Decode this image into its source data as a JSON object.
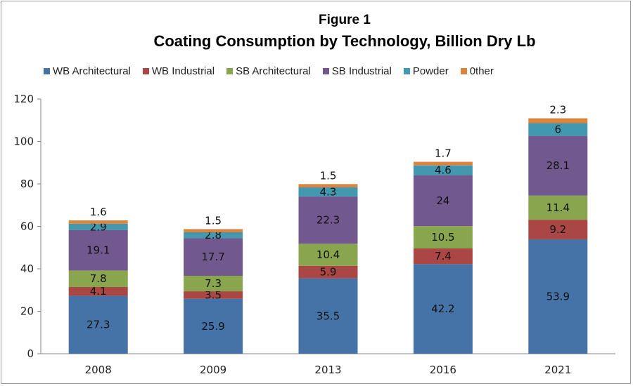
{
  "chart_data": {
    "type": "bar",
    "stacked": true,
    "supertitle": "Figure 1",
    "title": "Coating Consumption by Technology, Billion Dry Lb",
    "xlabel": "",
    "ylabel": "",
    "categories": [
      "2008",
      "2009",
      "2013",
      "2016",
      "2021"
    ],
    "ylim": [
      0,
      120
    ],
    "yticks": [
      0,
      20,
      40,
      60,
      80,
      100,
      120
    ],
    "grid": false,
    "legend_position": "top",
    "series": [
      {
        "name": "WB Architectural",
        "color": "#4572a7",
        "values": [
          27.3,
          25.9,
          35.5,
          42.2,
          53.9
        ]
      },
      {
        "name": "WB Industrial",
        "color": "#aa4643",
        "values": [
          4.1,
          3.5,
          5.9,
          7.4,
          9.2
        ]
      },
      {
        "name": "SB Architectural",
        "color": "#89a54e",
        "values": [
          7.8,
          7.3,
          10.4,
          10.5,
          11.4
        ]
      },
      {
        "name": "SB Industrial",
        "color": "#71588f",
        "values": [
          19.1,
          17.7,
          22.3,
          24,
          28.1
        ]
      },
      {
        "name": "Powder",
        "color": "#4198af",
        "values": [
          2.9,
          2.8,
          4.3,
          4.6,
          6
        ]
      },
      {
        "name": "0ther",
        "color": "#db843d",
        "values": [
          1.6,
          1.5,
          1.5,
          1.7,
          2.3
        ]
      }
    ]
  }
}
